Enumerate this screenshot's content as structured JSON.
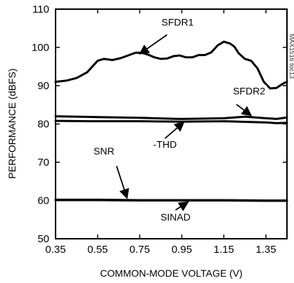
{
  "chart_data": {
    "type": "line",
    "xlabel": "COMMON-MODE VOLTAGE (V)",
    "ylabel": "PERFORMANCE (dBFS)",
    "xlim": [
      0.35,
      1.45
    ],
    "ylim": [
      50,
      110
    ],
    "x_ticks": [
      "0.35",
      "0.55",
      "0.75",
      "0.95",
      "1.15",
      "1.35"
    ],
    "y_ticks": [
      "50",
      "60",
      "70",
      "80",
      "90",
      "100",
      "110"
    ],
    "grid": false,
    "watermark": "MAX1516 toc13",
    "series": [
      {
        "name": "SFDR1",
        "x": [
          0.35,
          0.4,
          0.45,
          0.5,
          0.55,
          0.58,
          0.62,
          0.66,
          0.7,
          0.73,
          0.76,
          0.79,
          0.82,
          0.85,
          0.88,
          0.91,
          0.94,
          0.97,
          1.0,
          1.03,
          1.06,
          1.09,
          1.12,
          1.15,
          1.18,
          1.2,
          1.22,
          1.25,
          1.28,
          1.31,
          1.34,
          1.37,
          1.4,
          1.43,
          1.45
        ],
        "values": [
          91.0,
          91.3,
          92.0,
          93.5,
          96.5,
          97.0,
          96.7,
          97.2,
          98.0,
          98.6,
          98.6,
          98.1,
          97.4,
          97.0,
          97.1,
          97.7,
          97.9,
          97.4,
          97.4,
          98.0,
          98.0,
          98.7,
          100.5,
          101.5,
          101.0,
          100.2,
          98.5,
          97.0,
          96.5,
          94.5,
          91.0,
          89.3,
          89.4,
          90.5,
          91.0
        ]
      },
      {
        "name": "SFDR2",
        "x": [
          0.35,
          0.55,
          0.75,
          0.95,
          1.15,
          1.25,
          1.35,
          1.4,
          1.45
        ],
        "values": [
          82.0,
          81.8,
          81.6,
          81.3,
          81.5,
          81.9,
          81.5,
          81.3,
          81.7
        ]
      },
      {
        "name": "-THD",
        "x": [
          0.35,
          0.55,
          0.75,
          0.95,
          1.15,
          1.35,
          1.4,
          1.45
        ],
        "values": [
          80.8,
          80.7,
          80.7,
          80.6,
          80.7,
          80.4,
          80.2,
          80.3
        ]
      },
      {
        "name": "SNR",
        "x": [
          0.35,
          0.55,
          0.75,
          0.95,
          1.15,
          1.35,
          1.45
        ],
        "values": [
          60.2,
          60.2,
          60.1,
          60.1,
          60.1,
          60.0,
          60.0
        ]
      },
      {
        "name": "SINAD",
        "x": [
          0.35,
          0.55,
          0.75,
          0.95,
          1.15,
          1.35,
          1.45
        ],
        "values": [
          60.1,
          60.1,
          60.0,
          60.0,
          60.0,
          59.9,
          59.9
        ]
      }
    ],
    "annotations": [
      {
        "text": "SFDR1",
        "series": "SFDR1",
        "x": 0.93,
        "y": 105.7,
        "arrow_from": [
          0.88,
          103.3
        ],
        "arrow_to": [
          0.75,
          98.3
        ]
      },
      {
        "text": "SFDR2",
        "series": "SFDR2",
        "x": 1.27,
        "y": 87.7,
        "arrow_from": [
          1.21,
          85.1
        ],
        "arrow_to": [
          1.28,
          82.2
        ]
      },
      {
        "text": "-THD",
        "series": "-THD",
        "x": 0.87,
        "y": 73.8,
        "arrow_from": [
          0.87,
          76.2
        ],
        "arrow_to": [
          0.96,
          80.5
        ]
      },
      {
        "text": "SNR",
        "series": "SNR",
        "x": 0.58,
        "y": 72.0,
        "arrow_from": [
          0.64,
          69.0
        ],
        "arrow_to": [
          0.69,
          60.6
        ]
      },
      {
        "text": "SINAD",
        "series": "SINAD",
        "x": 0.92,
        "y": 54.8,
        "arrow_from": [
          0.92,
          57.5
        ],
        "arrow_to": [
          0.98,
          59.6
        ]
      }
    ]
  }
}
